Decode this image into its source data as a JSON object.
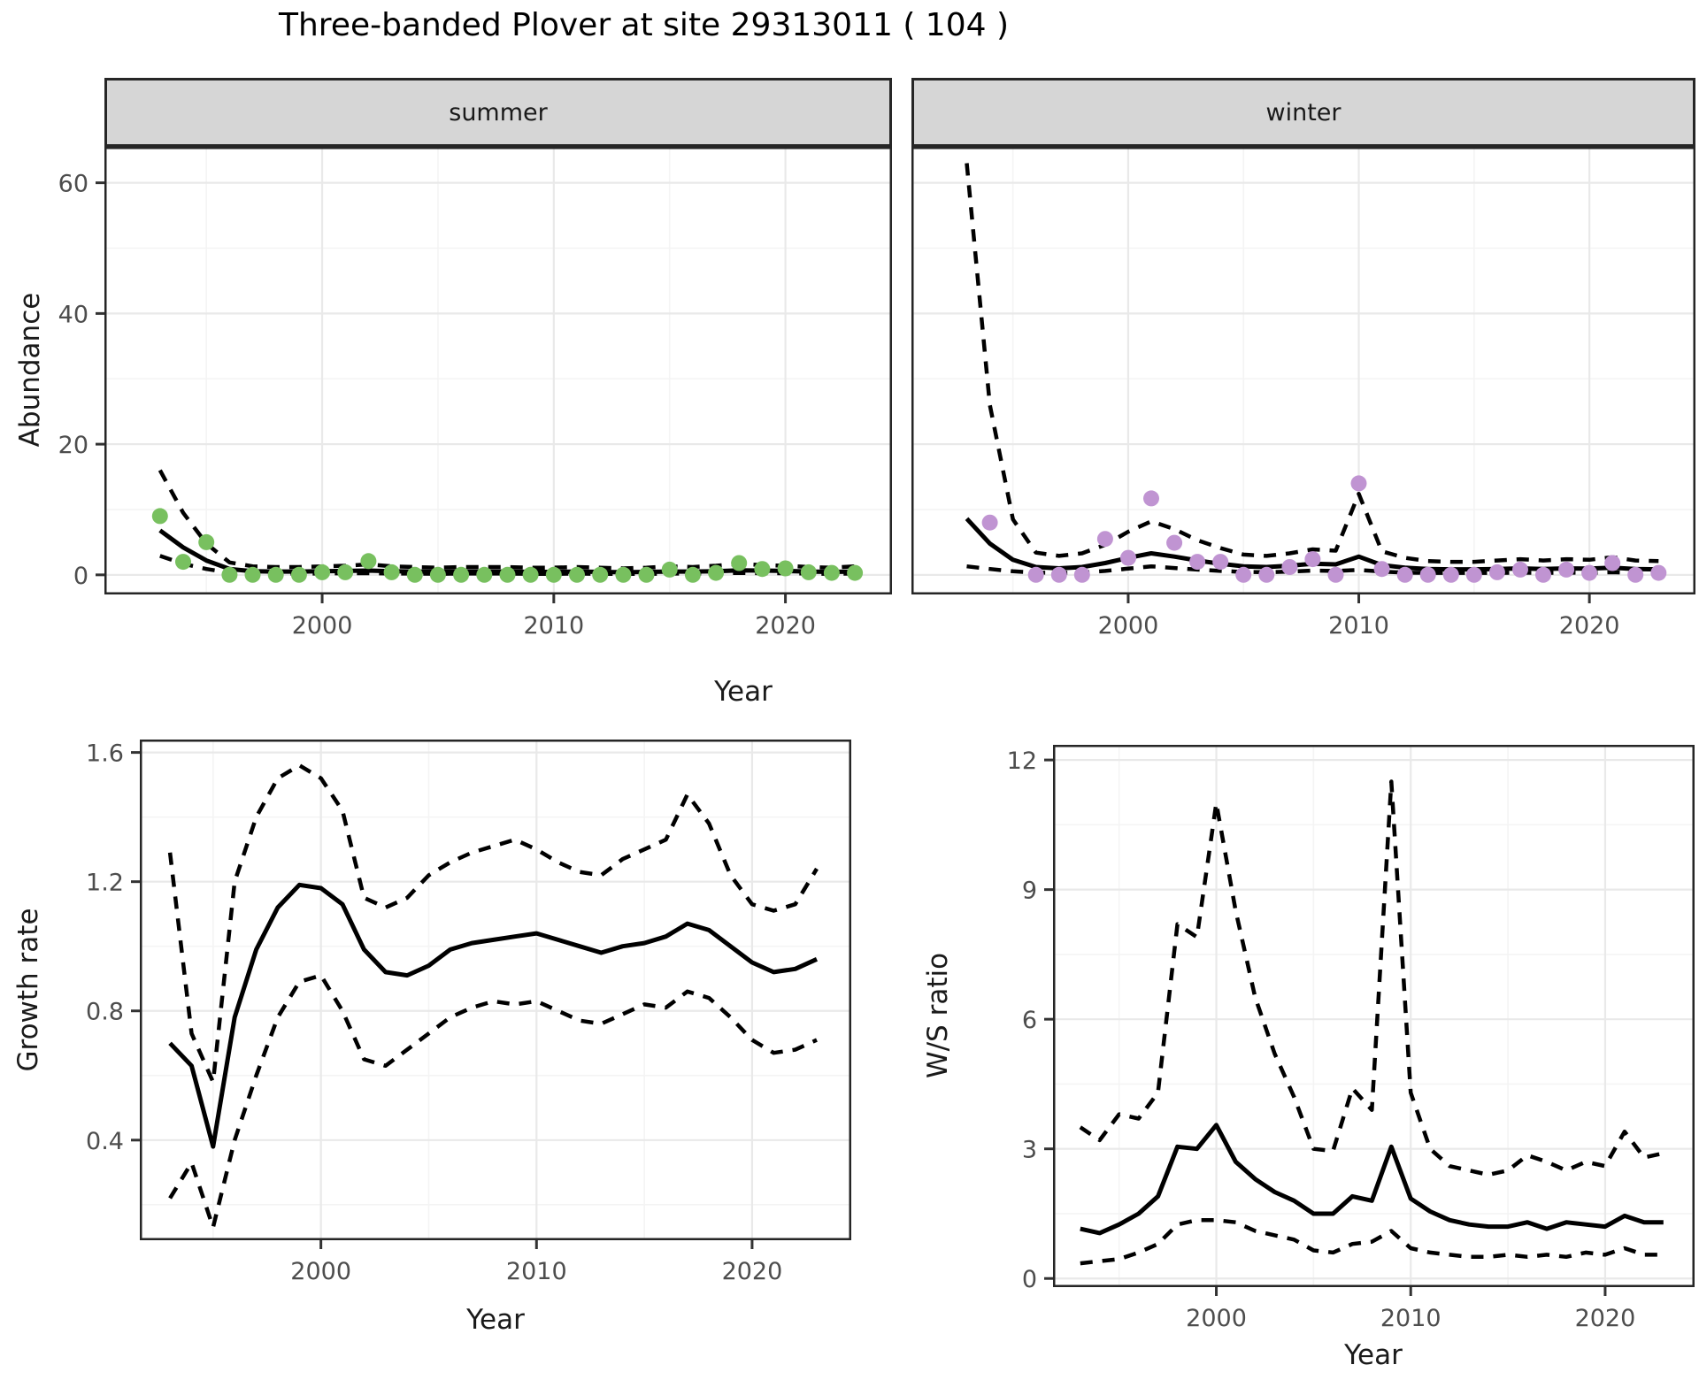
{
  "title": "Three-banded Plover at site 29313011 ( 104 )",
  "facets": {
    "summer_label": "summer",
    "winter_label": "winter"
  },
  "axis_titles": {
    "abundance": "Abundance",
    "year_top": "Year",
    "growth": "Growth rate",
    "year_growth": "Year",
    "ws": "W/S ratio",
    "year_ws": "Year"
  },
  "colors": {
    "summer_point": "#78c05f",
    "winter_point": "#c094d2",
    "line": "#000000",
    "grid_major": "#e9e9e9",
    "grid_minor": "#f4f4f4",
    "panel_border": "#262626",
    "tick": "#333333",
    "tick_label": "#4d4d4d",
    "strip_bg": "#d6d6d6"
  },
  "chart_data": [
    {
      "id": "summer",
      "type": "line",
      "title": "summer",
      "xlabel": "Year",
      "ylabel": "Abundance",
      "xlim": [
        1990.6,
        2024.6
      ],
      "ylim": [
        -3,
        65.5
      ],
      "x_ticks": [
        2000,
        2010,
        2020
      ],
      "x_minor": [
        1995,
        2005,
        2015
      ],
      "y_ticks": [
        0,
        20,
        40,
        60
      ],
      "y_minor": [
        10,
        30,
        50
      ],
      "years": [
        1993,
        1994,
        1995,
        1996,
        1997,
        1998,
        1999,
        2000,
        2001,
        2002,
        2003,
        2004,
        2005,
        2006,
        2007,
        2008,
        2009,
        2010,
        2011,
        2012,
        2013,
        2014,
        2015,
        2016,
        2017,
        2018,
        2019,
        2020,
        2021,
        2022,
        2023
      ],
      "series": [
        {
          "name": "fit",
          "style": "solid",
          "values": [
            6.8,
            4.2,
            2.2,
            0.9,
            0.55,
            0.5,
            0.5,
            0.55,
            0.6,
            0.65,
            0.55,
            0.5,
            0.45,
            0.5,
            0.5,
            0.5,
            0.45,
            0.45,
            0.5,
            0.45,
            0.4,
            0.45,
            0.5,
            0.5,
            0.55,
            0.7,
            0.65,
            0.6,
            0.5,
            0.45,
            0.5
          ]
        },
        {
          "name": "upper_ci",
          "style": "dashed",
          "values": [
            16,
            9.5,
            4.8,
            1.9,
            1.3,
            1.2,
            1.2,
            1.3,
            1.4,
            1.6,
            1.3,
            1.2,
            1.1,
            1.2,
            1.2,
            1.2,
            1.1,
            1.1,
            1.2,
            1.1,
            1.0,
            1.1,
            1.3,
            1.2,
            1.4,
            1.7,
            1.5,
            1.4,
            1.2,
            1.1,
            1.3
          ]
        },
        {
          "name": "lower_ci",
          "style": "dashed",
          "values": [
            2.9,
            1.7,
            0.9,
            0.35,
            0.2,
            0.2,
            0.2,
            0.2,
            0.25,
            0.25,
            0.2,
            0.2,
            0.15,
            0.2,
            0.2,
            0.2,
            0.15,
            0.15,
            0.2,
            0.15,
            0.15,
            0.15,
            0.2,
            0.2,
            0.2,
            0.3,
            0.25,
            0.25,
            0.2,
            0.15,
            0.2
          ]
        }
      ],
      "points": {
        "name": "observed-summer",
        "color_key": "summer_point",
        "values": [
          9,
          2,
          5,
          0,
          0,
          0,
          0,
          0.4,
          0.4,
          2.1,
          0.4,
          0,
          0,
          0,
          0,
          0,
          0,
          0,
          0,
          0,
          0,
          0,
          0.8,
          0,
          0.3,
          1.8,
          0.9,
          1.0,
          0.4,
          0.3,
          0.3
        ]
      }
    },
    {
      "id": "winter",
      "type": "line",
      "title": "winter",
      "xlabel": "Year",
      "ylabel": "Abundance",
      "xlim": [
        1990.6,
        2024.6
      ],
      "ylim": [
        -3,
        65.5
      ],
      "x_ticks": [
        2000,
        2010,
        2020
      ],
      "x_minor": [
        1995,
        2005,
        2015
      ],
      "y_ticks": [
        0,
        20,
        40,
        60
      ],
      "y_minor": [
        10,
        30,
        50
      ],
      "years": [
        1993,
        1994,
        1995,
        1996,
        1997,
        1998,
        1999,
        2000,
        2001,
        2002,
        2003,
        2004,
        2005,
        2006,
        2007,
        2008,
        2009,
        2010,
        2011,
        2012,
        2013,
        2014,
        2015,
        2016,
        2017,
        2018,
        2019,
        2020,
        2021,
        2022,
        2023
      ],
      "series": [
        {
          "name": "fit",
          "style": "solid",
          "values": [
            8.6,
            4.8,
            2.3,
            1.2,
            1.0,
            1.2,
            1.8,
            2.6,
            3.3,
            2.8,
            2.2,
            1.7,
            1.3,
            1.2,
            1.4,
            1.7,
            1.6,
            2.8,
            1.5,
            1.1,
            0.9,
            0.85,
            0.85,
            0.9,
            1.0,
            0.9,
            1.0,
            0.95,
            1.1,
            0.9,
            0.85
          ]
        },
        {
          "name": "upper_ci",
          "style": "dashed",
          "values": [
            63,
            26,
            8.5,
            3.4,
            2.9,
            3.3,
            4.6,
            6.6,
            8.2,
            7.0,
            5.3,
            4.1,
            3.1,
            2.9,
            3.3,
            3.9,
            3.7,
            12.4,
            3.6,
            2.6,
            2.1,
            2.0,
            2.0,
            2.2,
            2.4,
            2.2,
            2.4,
            2.3,
            2.7,
            2.2,
            2.1
          ]
        },
        {
          "name": "lower_ci",
          "style": "dashed",
          "values": [
            1.3,
            0.9,
            0.55,
            0.35,
            0.3,
            0.35,
            0.6,
            0.95,
            1.3,
            1.05,
            0.8,
            0.6,
            0.45,
            0.4,
            0.5,
            0.65,
            0.6,
            0.75,
            0.5,
            0.35,
            0.3,
            0.3,
            0.3,
            0.3,
            0.35,
            0.3,
            0.35,
            0.3,
            0.4,
            0.3,
            0.3
          ]
        }
      ],
      "points": {
        "name": "observed-winter",
        "color_key": "winter_point",
        "values": [
          null,
          8,
          null,
          0,
          0,
          0,
          5.5,
          2.6,
          11.7,
          4.9,
          2.0,
          2.0,
          0,
          0,
          1.2,
          2.4,
          0,
          14,
          0.9,
          0,
          0,
          0,
          0,
          0.4,
          0.8,
          0,
          0.8,
          0.3,
          1.8,
          0,
          0.3
        ]
      }
    },
    {
      "id": "growth",
      "type": "line",
      "title": "Growth rate",
      "xlabel": "Year",
      "ylabel": "Growth rate",
      "xlim": [
        1991.6,
        2024.6
      ],
      "ylim": [
        0.09,
        1.64
      ],
      "x_ticks": [
        2000,
        2010,
        2020
      ],
      "x_minor": [
        1995,
        2005,
        2015
      ],
      "y_ticks": [
        0.4,
        0.8,
        1.2,
        1.6
      ],
      "y_minor": [
        0.2,
        0.6,
        1.0,
        1.4
      ],
      "years": [
        1993,
        1994,
        1995,
        1996,
        1997,
        1998,
        1999,
        2000,
        2001,
        2002,
        2003,
        2004,
        2005,
        2006,
        2007,
        2008,
        2009,
        2010,
        2011,
        2012,
        2013,
        2014,
        2015,
        2016,
        2017,
        2018,
        2019,
        2020,
        2021,
        2022,
        2023
      ],
      "series": [
        {
          "name": "fit",
          "style": "solid",
          "values": [
            0.7,
            0.63,
            0.38,
            0.78,
            0.99,
            1.12,
            1.19,
            1.18,
            1.13,
            0.99,
            0.92,
            0.91,
            0.94,
            0.99,
            1.01,
            1.02,
            1.03,
            1.04,
            1.02,
            1.0,
            0.98,
            1.0,
            1.01,
            1.03,
            1.07,
            1.05,
            1.0,
            0.95,
            0.92,
            0.93,
            0.96
          ]
        },
        {
          "name": "upper_ci",
          "style": "dashed",
          "values": [
            1.29,
            0.73,
            0.58,
            1.2,
            1.4,
            1.52,
            1.56,
            1.52,
            1.42,
            1.15,
            1.12,
            1.15,
            1.22,
            1.26,
            1.29,
            1.31,
            1.33,
            1.3,
            1.26,
            1.23,
            1.22,
            1.27,
            1.3,
            1.33,
            1.47,
            1.38,
            1.22,
            1.13,
            1.11,
            1.13,
            1.24
          ]
        },
        {
          "name": "lower_ci",
          "style": "dashed",
          "values": [
            0.22,
            0.33,
            0.13,
            0.4,
            0.6,
            0.78,
            0.89,
            0.91,
            0.8,
            0.65,
            0.63,
            0.68,
            0.73,
            0.78,
            0.81,
            0.83,
            0.82,
            0.83,
            0.8,
            0.77,
            0.76,
            0.79,
            0.82,
            0.81,
            0.86,
            0.84,
            0.78,
            0.71,
            0.67,
            0.68,
            0.71
          ]
        }
      ],
      "points": null
    },
    {
      "id": "ws",
      "type": "line",
      "title": "W/S ratio",
      "xlabel": "Year",
      "ylabel": "W/S ratio",
      "xlim": [
        1991.6,
        2024.6
      ],
      "ylim": [
        -0.2,
        12.35
      ],
      "x_ticks": [
        2000,
        2010,
        2020
      ],
      "x_minor": [
        1995,
        2005,
        2015
      ],
      "y_ticks": [
        0,
        3,
        6,
        9,
        12
      ],
      "y_minor": [
        1.5,
        4.5,
        7.5,
        10.5
      ],
      "years": [
        1993,
        1994,
        1995,
        1996,
        1997,
        1998,
        1999,
        2000,
        2001,
        2002,
        2003,
        2004,
        2005,
        2006,
        2007,
        2008,
        2009,
        2010,
        2011,
        2012,
        2013,
        2014,
        2015,
        2016,
        2017,
        2018,
        2019,
        2020,
        2021,
        2022,
        2023
      ],
      "series": [
        {
          "name": "fit",
          "style": "solid",
          "values": [
            1.15,
            1.05,
            1.25,
            1.5,
            1.9,
            3.05,
            3.0,
            3.55,
            2.7,
            2.3,
            2.0,
            1.8,
            1.5,
            1.5,
            1.9,
            1.8,
            3.05,
            1.85,
            1.55,
            1.35,
            1.25,
            1.2,
            1.2,
            1.3,
            1.15,
            1.3,
            1.25,
            1.2,
            1.45,
            1.3,
            1.3
          ]
        },
        {
          "name": "upper_ci",
          "style": "dashed",
          "values": [
            3.5,
            3.2,
            3.8,
            3.7,
            4.3,
            8.2,
            7.9,
            11.0,
            8.5,
            6.5,
            5.2,
            4.2,
            3.0,
            2.95,
            4.4,
            3.9,
            11.5,
            4.3,
            3.0,
            2.6,
            2.5,
            2.4,
            2.5,
            2.85,
            2.7,
            2.5,
            2.7,
            2.6,
            3.4,
            2.8,
            2.9
          ]
        },
        {
          "name": "lower_ci",
          "style": "dashed",
          "values": [
            0.35,
            0.4,
            0.45,
            0.6,
            0.8,
            1.25,
            1.35,
            1.35,
            1.3,
            1.1,
            1.0,
            0.9,
            0.65,
            0.6,
            0.8,
            0.85,
            1.1,
            0.7,
            0.6,
            0.55,
            0.5,
            0.5,
            0.55,
            0.5,
            0.55,
            0.5,
            0.6,
            0.55,
            0.7,
            0.55,
            0.55
          ]
        }
      ],
      "points": null
    }
  ]
}
